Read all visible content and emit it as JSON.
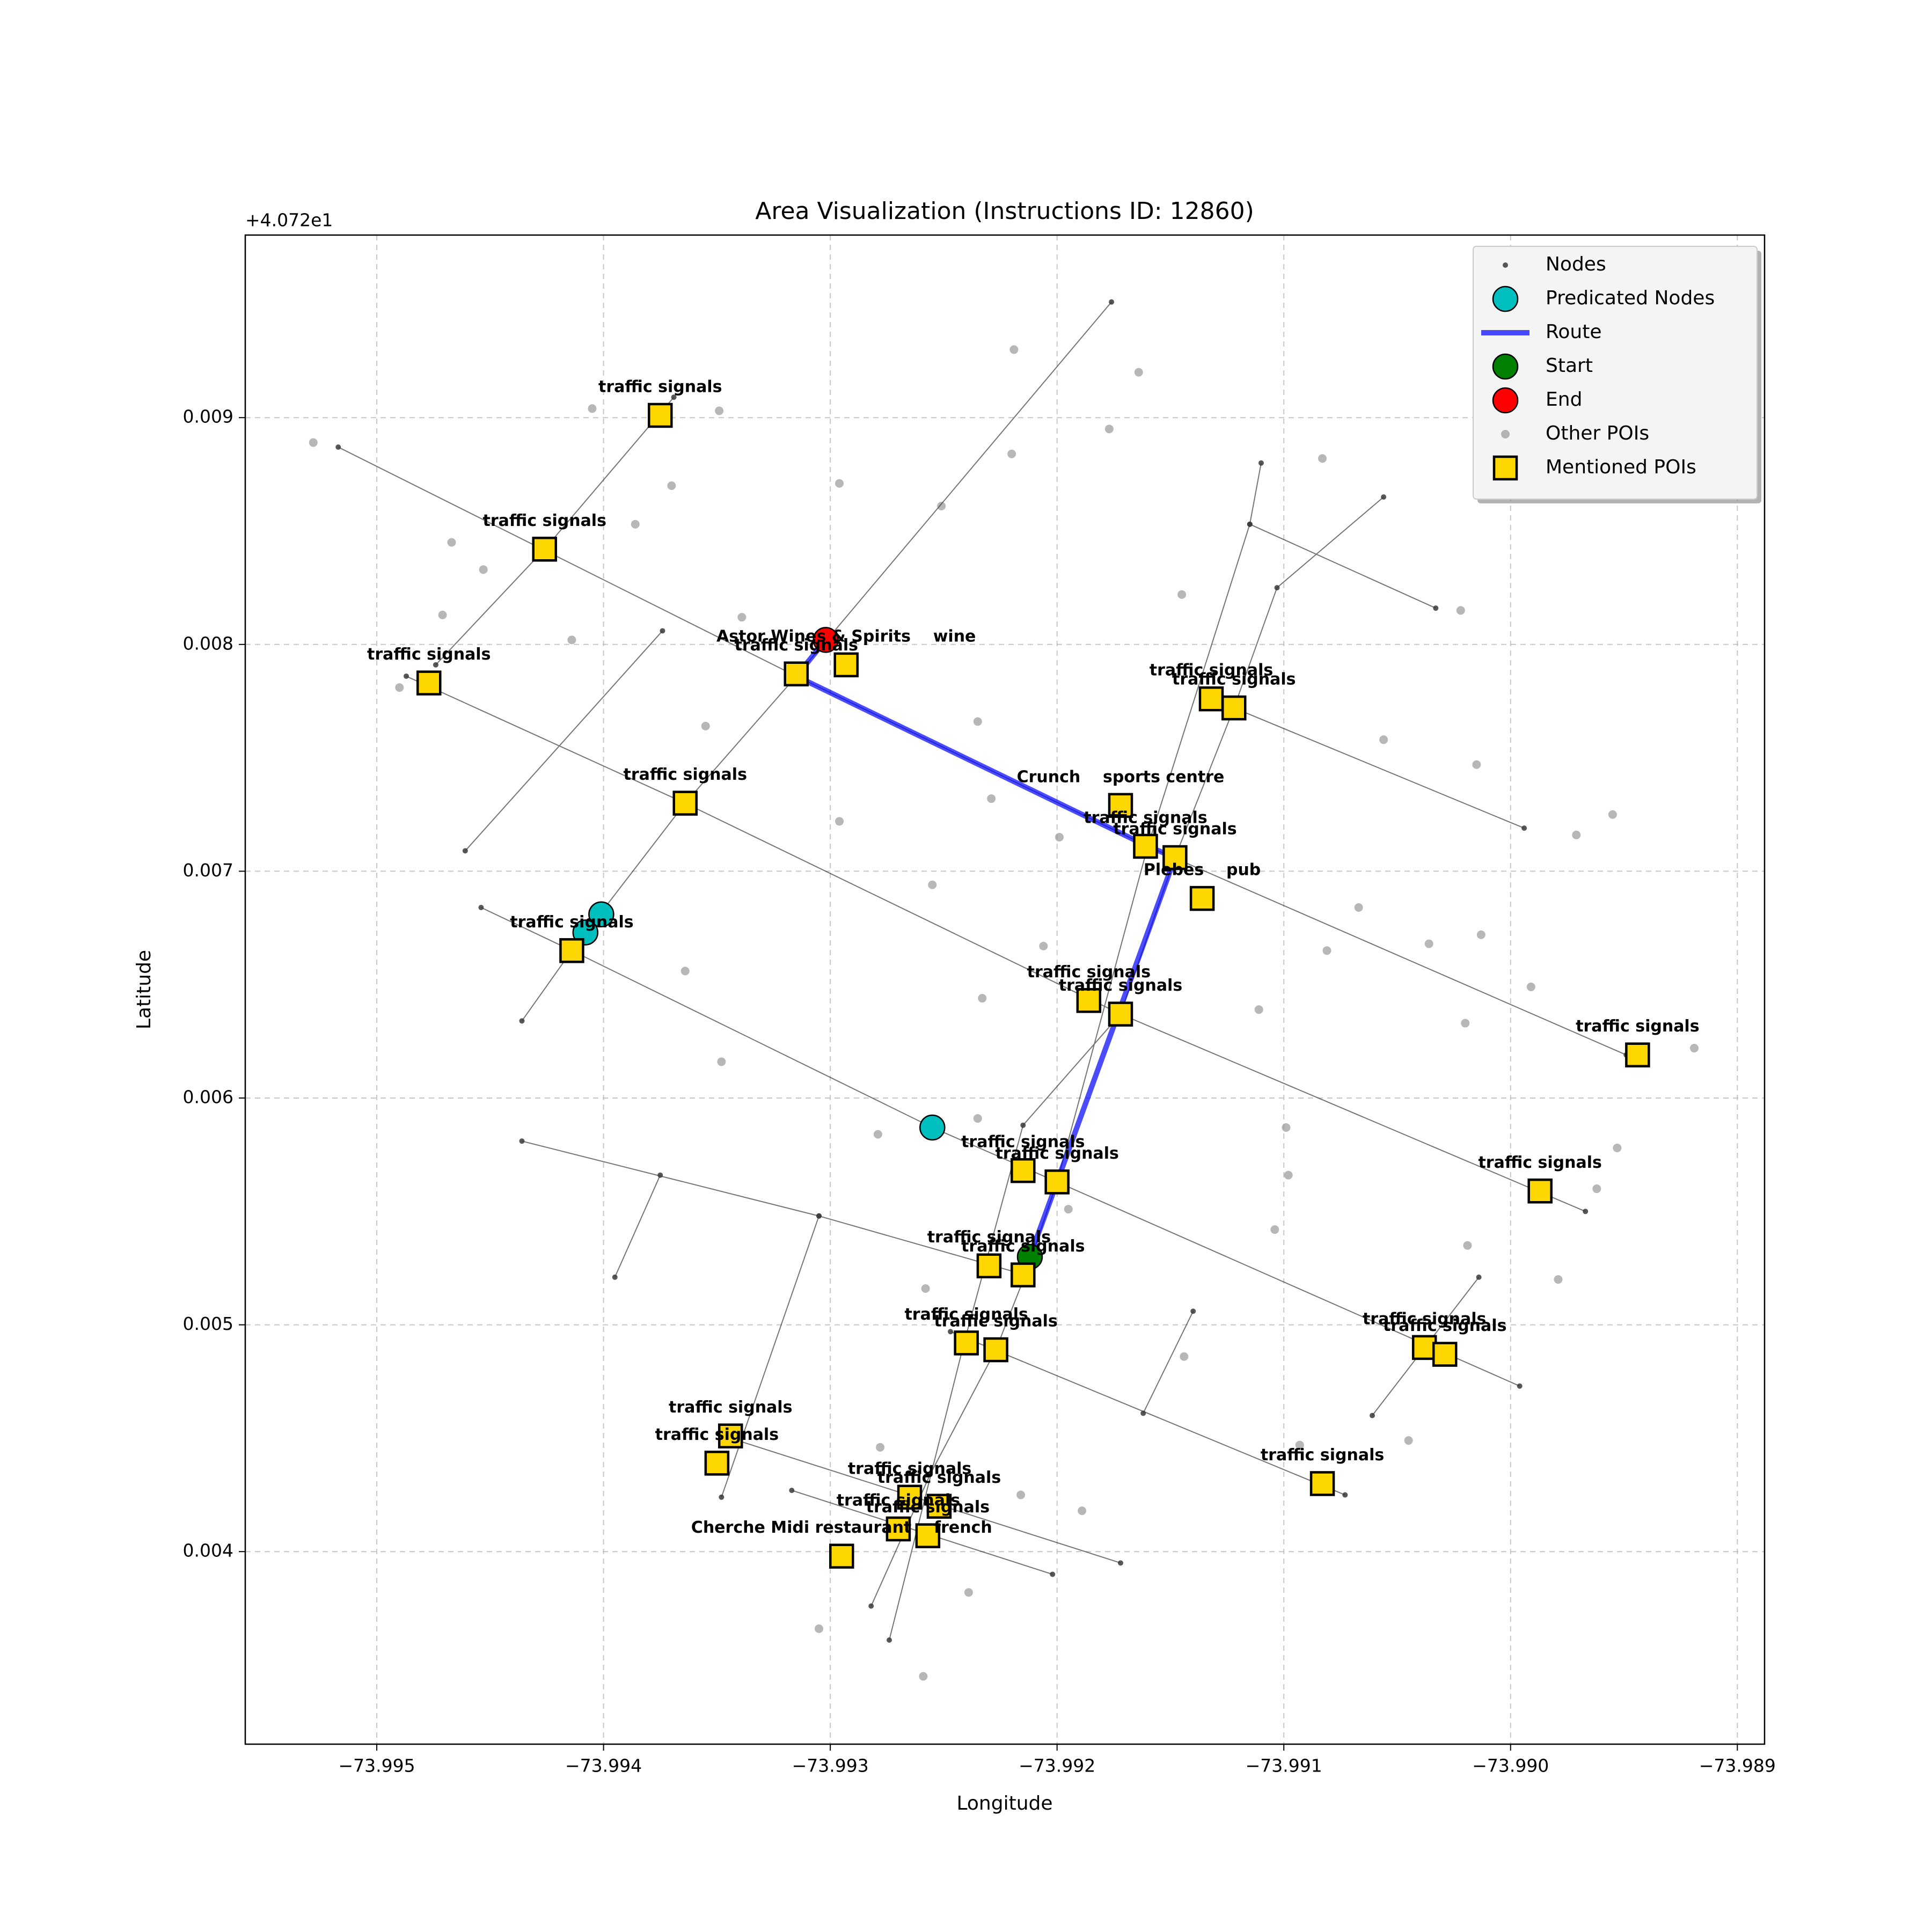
{
  "chart_data": {
    "type": "scatter",
    "title": "Area Visualization (Instructions ID: 12860)",
    "offset_text": "+4.072e1",
    "x_label": "Longitude",
    "y_label": "Latitude",
    "xlim": [
      -73.99558,
      -73.98888
    ],
    "ylim": [
      0.003151,
      0.009805
    ],
    "xticks": [
      {
        "value": -73.995,
        "label": "−73.995"
      },
      {
        "value": -73.994,
        "label": "−73.994"
      },
      {
        "value": -73.993,
        "label": "−73.993"
      },
      {
        "value": -73.992,
        "label": "−73.992"
      },
      {
        "value": -73.991,
        "label": "−73.991"
      },
      {
        "value": -73.99,
        "label": "−73.990"
      },
      {
        "value": -73.989,
        "label": "−73.989"
      }
    ],
    "yticks": [
      0.004,
      0.005,
      0.006,
      0.007,
      0.008,
      0.009
    ],
    "grid": true,
    "legend": "upper right",
    "series": [
      {
        "name": "Nodes",
        "color": "#3a3a3a",
        "marker": "point",
        "edges": true,
        "x": [
          -73.99517,
          -73.99315,
          -73.9916,
          -73.98949,
          null,
          -73.99487,
          -73.99364,
          -73.99172,
          -73.98967,
          null,
          -73.99454,
          -73.99414,
          -73.99255,
          -73.992,
          -73.98996,
          null,
          -73.99436,
          -73.99305,
          -73.99214,
          null,
          -73.99344,
          -73.99172,
          null,
          -73.99317,
          -73.99202,
          null,
          -73.99247,
          -73.99073,
          null,
          -73.99122,
          -73.98994,
          null,
          -73.99115,
          -73.99033,
          null,
          -73.99474,
          -73.99426,
          -73.99369,
          null,
          -73.99461,
          -73.99374,
          null,
          -73.99436,
          -73.99414,
          -73.99364,
          -73.99315,
          -73.99176,
          null,
          -73.99395,
          -73.99375,
          null,
          -73.99348,
          -73.99305,
          null,
          -73.99282,
          -73.99256,
          -73.99227,
          -73.99214,
          -73.992,
          -73.9916,
          -73.99115,
          -73.9911,
          null,
          -73.99274,
          -73.99241,
          -73.99215,
          -73.99172,
          -73.99148,
          -73.99122,
          -73.99103,
          -73.99056,
          null,
          -73.99061,
          -73.99014,
          null,
          -73.99162,
          -73.9914
        ],
        "y": [
          0.00887,
          0.00786,
          0.00711,
          0.00619,
          null,
          0.00786,
          0.0073,
          0.00637,
          0.0055,
          null,
          0.00684,
          0.00665,
          0.00587,
          0.00563,
          0.00473,
          null,
          0.00581,
          0.00548,
          0.00522,
          null,
          0.0045,
          0.00395,
          null,
          0.00427,
          0.0039,
          null,
          0.00497,
          0.00425,
          null,
          0.00772,
          0.00719,
          null,
          0.00853,
          0.00816,
          null,
          0.00791,
          0.00842,
          0.00909,
          null,
          0.00709,
          0.00806,
          null,
          0.00634,
          0.00665,
          0.0073,
          0.00786,
          0.00951,
          null,
          0.00521,
          0.00566,
          null,
          0.00424,
          0.00548,
          null,
          0.00376,
          0.00434,
          0.00489,
          0.00522,
          0.00563,
          0.00711,
          0.00853,
          0.0088,
          null,
          0.00361,
          0.00492,
          0.00588,
          0.00637,
          0.00706,
          0.00772,
          0.00825,
          0.00865,
          null,
          0.0046,
          0.00521,
          null,
          0.00461,
          0.00506
        ]
      },
      {
        "name": "Predicated Nodes",
        "color": "#00bfbf",
        "marker": "circle",
        "x": [
          -73.99401,
          -73.99408,
          -73.99255
        ],
        "y": [
          0.00681,
          0.00673,
          0.00587
        ]
      },
      {
        "name": "Route",
        "color": "#0000ff",
        "marker": "line",
        "x": [
          -73.99302,
          -73.99315,
          -73.9916,
          -73.99148,
          -73.992,
          -73.99212
        ],
        "y": [
          0.00802,
          0.00786,
          0.00711,
          0.00706,
          0.00563,
          0.0053
        ]
      },
      {
        "name": "Start",
        "color": "#008000",
        "marker": "circle",
        "x": [
          -73.99212
        ],
        "y": [
          0.0053
        ]
      },
      {
        "name": "End",
        "color": "#ff0000",
        "marker": "circle",
        "x": [
          -73.99302
        ],
        "y": [
          0.00802
        ]
      },
      {
        "name": "Other POIs",
        "color": "#999999",
        "marker": "dot",
        "x": [
          -73.99528,
          -73.99405,
          -73.99349,
          -73.9937,
          -73.99386,
          -73.99467,
          -73.99453,
          -73.99471,
          -73.9949,
          -73.99414,
          -73.99355,
          -73.99339,
          -73.99296,
          -73.99296,
          -73.99219,
          -73.99251,
          -73.99164,
          -73.99177,
          -73.9922,
          -73.99235,
          -73.99229,
          -73.99199,
          -73.99145,
          -73.99083,
          -73.99022,
          -73.99056,
          -73.99015,
          -73.98971,
          -73.98955,
          -73.99067,
          -73.99036,
          -73.99013,
          -73.99081,
          -73.98991,
          -73.9902,
          -73.99111,
          -73.98919,
          -73.98953,
          -73.98962,
          -73.99019,
          -73.98979,
          -73.99045,
          -73.99099,
          -73.99098,
          -73.99104,
          -73.99255,
          -73.99206,
          -73.99233,
          -73.99348,
          -73.99364,
          -73.99279,
          -73.99235,
          -73.99195,
          -73.99258,
          -73.99144,
          -73.99278,
          -73.99216,
          -73.99189,
          -73.99305,
          -73.99239,
          -73.99259,
          -73.99093
        ],
        "y": [
          0.00889,
          0.00904,
          0.00903,
          0.0087,
          0.00853,
          0.00845,
          0.00833,
          0.00813,
          0.00781,
          0.00802,
          0.00764,
          0.00812,
          0.00871,
          0.00722,
          0.0093,
          0.00861,
          0.0092,
          0.00895,
          0.00884,
          0.00766,
          0.00732,
          0.00715,
          0.00822,
          0.00882,
          0.00815,
          0.00758,
          0.00747,
          0.00716,
          0.00725,
          0.00684,
          0.00668,
          0.00672,
          0.00665,
          0.00649,
          0.00633,
          0.00639,
          0.00622,
          0.00578,
          0.0056,
          0.00535,
          0.0052,
          0.00449,
          0.00587,
          0.00566,
          0.00542,
          0.00694,
          0.00667,
          0.00644,
          0.00616,
          0.00656,
          0.00584,
          0.00591,
          0.00551,
          0.00516,
          0.00486,
          0.00446,
          0.00425,
          0.00418,
          0.00366,
          0.00382,
          0.00345,
          0.00447
        ]
      },
      {
        "name": "Mentioned POIs",
        "color": "#ffd700",
        "marker": "square",
        "label_color": "#b8860b",
        "x": [
          -73.99375,
          -73.99426,
          -73.99477,
          -73.99315,
          -73.99293,
          -73.99364,
          -73.99414,
          -73.99172,
          -73.99161,
          -73.99148,
          -73.99136,
          -73.99132,
          -73.99122,
          -73.99186,
          -73.99172,
          -73.98944,
          -73.99215,
          -73.992,
          -73.98987,
          -73.9923,
          -73.99215,
          -73.9924,
          -73.99227,
          -73.99038,
          -73.99029,
          -73.99344,
          -73.9935,
          -73.99083,
          -73.99265,
          -73.99252,
          -73.9927,
          -73.99257,
          -73.99295
        ],
        "y": [
          0.00901,
          0.00842,
          0.00783,
          0.00787,
          0.00791,
          0.0073,
          0.00665,
          0.00729,
          0.00711,
          0.00706,
          0.00688,
          0.00776,
          0.00772,
          0.00643,
          0.00637,
          0.00619,
          0.00568,
          0.00563,
          0.00559,
          0.00526,
          0.00522,
          0.00492,
          0.00489,
          0.0049,
          0.00487,
          0.00451,
          0.00439,
          0.0043,
          0.00424,
          0.0042,
          0.0041,
          0.00407,
          0.00398
        ],
        "labels": [
          "traffic signals",
          "traffic signals",
          "traffic signals",
          "traffic signals",
          "Astor Wines & Spirits    wine",
          "traffic signals",
          "traffic signals",
          "Crunch    sports centre",
          "traffic signals",
          "traffic signals",
          "Plebes    pub",
          "traffic signals",
          "traffic signals",
          "traffic signals",
          "traffic signals",
          "traffic signals",
          "traffic signals",
          "traffic signals",
          "traffic signals",
          "traffic signals",
          "traffic signals",
          "traffic signals",
          "traffic signals",
          "traffic signals",
          "traffic signals",
          "traffic signals",
          "traffic signals",
          "traffic signals",
          "traffic signals",
          "traffic signals",
          "traffic signals",
          "traffic signals",
          "Cherche Midi restaurant    french"
        ]
      }
    ]
  }
}
